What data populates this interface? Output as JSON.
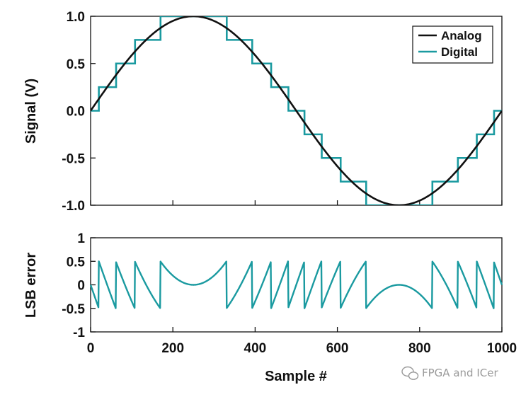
{
  "chart_data": [
    {
      "type": "line",
      "title": "",
      "xlabel": "",
      "ylabel": "Signal (V)",
      "xlim": [
        0,
        1000
      ],
      "ylim": [
        -1.0,
        1.0
      ],
      "ytick_labels": [
        "1.0",
        "0.5",
        "0.0",
        "-0.5",
        "-1.0"
      ],
      "grid": false,
      "legend_position": "top-right",
      "series": [
        {
          "name": "Analog",
          "color": "#111111",
          "kind": "sine",
          "amplitude": 1.0,
          "period_samples": 1000,
          "phase": 0
        },
        {
          "name": "Digital",
          "color": "#1a9aa0",
          "kind": "quantized",
          "lsb_volts": 0.25,
          "amplitude": 1.0,
          "period_samples": 1000
        }
      ]
    },
    {
      "type": "line",
      "title": "",
      "xlabel": "Sample #",
      "ylabel": "LSB error",
      "xlim": [
        0,
        1000
      ],
      "ylim": [
        -1,
        1
      ],
      "xtick_labels": [
        "0",
        "200",
        "400",
        "600",
        "800",
        "1000"
      ],
      "ytick_labels": [
        "1",
        "0.5",
        "0",
        "-0.5",
        "-1"
      ],
      "grid": false,
      "series": [
        {
          "name": "",
          "color": "#1a9aa0",
          "kind": "quantization_error"
        }
      ]
    }
  ],
  "watermark": {
    "text": "FPGA and ICer",
    "icon": "wechat-icon"
  }
}
